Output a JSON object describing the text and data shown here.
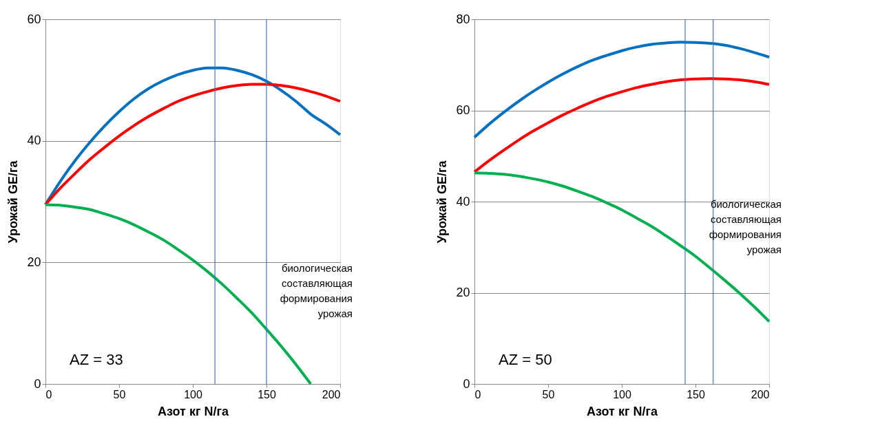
{
  "chart_data": [
    {
      "type": "line",
      "xlabel": "Азот кг N/га",
      "ylabel": "Урожай GE/га",
      "xlim": [
        0,
        200
      ],
      "ylim": [
        0,
        60
      ],
      "xticks": [
        0,
        50,
        100,
        150,
        200
      ],
      "yticks": [
        0,
        20,
        40,
        60
      ],
      "grid": "y",
      "legend": false,
      "x": [
        0,
        10,
        20,
        30,
        40,
        50,
        60,
        70,
        80,
        90,
        100,
        110,
        120,
        130,
        140,
        150,
        160,
        170,
        180,
        190,
        200
      ],
      "series": [
        {
          "color": "#0070c0",
          "values": [
            29.5,
            33.3,
            36.7,
            39.7,
            42.4,
            44.8,
            46.9,
            48.6,
            49.9,
            50.9,
            51.6,
            52.0,
            52.0,
            51.6,
            50.9,
            49.8,
            48.3,
            46.5,
            44.4,
            42.8,
            41.0
          ]
        },
        {
          "color": "#ff0000",
          "values": [
            29.5,
            32.2,
            34.6,
            36.9,
            38.9,
            40.8,
            42.5,
            44.0,
            45.3,
            46.5,
            47.4,
            48.1,
            48.7,
            49.1,
            49.3,
            49.3,
            49.1,
            48.7,
            48.1,
            47.4,
            46.5
          ]
        },
        {
          "color": "#00b050",
          "x": [
            0,
            10,
            20,
            30,
            40,
            50,
            60,
            70,
            80,
            90,
            100,
            110,
            120,
            130,
            140,
            150,
            160,
            170,
            180
          ],
          "values": [
            29.5,
            29.4,
            29.1,
            28.7,
            28.0,
            27.2,
            26.2,
            25.0,
            23.7,
            22.1,
            20.4,
            18.5,
            16.4,
            14.1,
            11.7,
            9.0,
            6.2,
            3.2,
            0.0
          ]
        }
      ],
      "ref_lines": [
        {
          "axis": "x",
          "value": 115,
          "color": "#4472c4"
        },
        {
          "axis": "x",
          "value": 150,
          "color": "#4472c4"
        }
      ],
      "annotations": [
        "биологическая\nсоставляющая\nформирования\nурожая",
        "AZ = 33"
      ]
    },
    {
      "type": "line",
      "xlabel": "Азот кг N/га",
      "ylabel": "Урожай GE/га",
      "xlim": [
        0,
        200
      ],
      "ylim": [
        0,
        80
      ],
      "xticks": [
        0,
        50,
        100,
        150,
        200
      ],
      "yticks": [
        0,
        20,
        40,
        60,
        80
      ],
      "grid": "y",
      "legend": false,
      "x": [
        0,
        10,
        20,
        30,
        40,
        50,
        60,
        70,
        80,
        90,
        100,
        110,
        120,
        130,
        140,
        150,
        160,
        170,
        180,
        190,
        200
      ],
      "series": [
        {
          "color": "#0070c0",
          "values": [
            54.1,
            57.0,
            59.6,
            62.0,
            64.2,
            66.2,
            68.0,
            69.6,
            71.0,
            72.1,
            73.1,
            73.9,
            74.5,
            74.8,
            75.0,
            74.9,
            74.7,
            74.3,
            73.6,
            72.7,
            71.7
          ]
        },
        {
          "color": "#ff0000",
          "values": [
            46.5,
            49.0,
            51.3,
            53.5,
            55.5,
            57.3,
            59.0,
            60.5,
            61.9,
            63.1,
            64.1,
            65.0,
            65.7,
            66.3,
            66.7,
            66.9,
            67.0,
            66.9,
            66.7,
            66.3,
            65.7
          ]
        },
        {
          "color": "#00b050",
          "values": [
            46.3,
            46.2,
            46.0,
            45.6,
            45.0,
            44.3,
            43.4,
            42.3,
            41.1,
            39.7,
            38.2,
            36.4,
            34.6,
            32.5,
            30.3,
            28.0,
            25.4,
            22.7,
            19.9,
            16.9,
            13.7
          ]
        }
      ],
      "ref_lines": [
        {
          "axis": "x",
          "value": 143,
          "color": "#4472c4"
        },
        {
          "axis": "x",
          "value": 162,
          "color": "#4472c4"
        }
      ],
      "annotations": [
        "биологическая\nсоставляющая\nформирования\nурожая",
        "AZ = 50"
      ]
    }
  ]
}
